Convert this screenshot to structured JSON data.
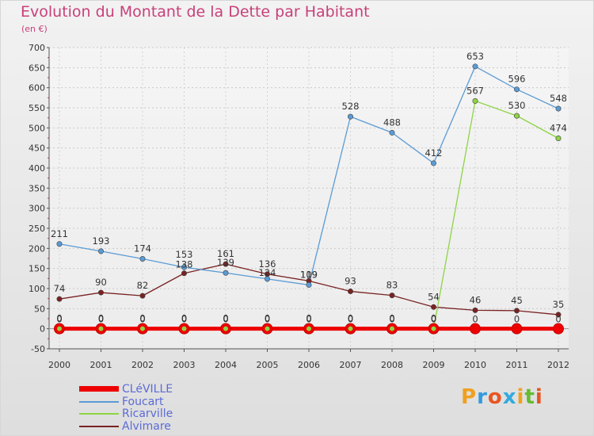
{
  "title": "Evolution du Montant de la Dette par Habitant",
  "subtitle": "(en €)",
  "brand": {
    "text": "Proxiti",
    "colors": [
      "#f0a020",
      "#3399dd",
      "#e85522",
      "#33aadd",
      "#f0a020",
      "#66bb33",
      "#e85522"
    ]
  },
  "chart_data": {
    "type": "line",
    "title": "Evolution du Montant de la Dette par Habitant",
    "subtitle": "(en €)",
    "x": [
      "2000",
      "2001",
      "2002",
      "2003",
      "2004",
      "2005",
      "2006",
      "2007",
      "2008",
      "2009",
      "2010",
      "2011",
      "2012"
    ],
    "ylim": [
      -50,
      700
    ],
    "yticks": [
      -50,
      0,
      50,
      100,
      150,
      200,
      250,
      300,
      350,
      400,
      450,
      500,
      550,
      600,
      650,
      700
    ],
    "grid": true,
    "legend_position": "bottom-left",
    "series": [
      {
        "name": "CLéVILLE",
        "color": "#ee0000",
        "values": [
          0,
          0,
          0,
          0,
          0,
          0,
          0,
          0,
          0,
          0,
          0,
          0,
          0
        ]
      },
      {
        "name": "Foucart",
        "color": "#5a9bd5",
        "values": [
          211,
          193,
          174,
          153,
          139,
          124,
          109,
          528,
          488,
          412,
          653,
          596,
          548
        ]
      },
      {
        "name": "Ricarville",
        "color": "#8ed444",
        "values": [
          0,
          0,
          0,
          0,
          0,
          0,
          0,
          0,
          0,
          0,
          567,
          530,
          474
        ]
      },
      {
        "name": "Alvimare",
        "color": "#7a2222",
        "values": [
          74,
          90,
          82,
          138,
          161,
          136,
          119,
          93,
          83,
          54,
          46,
          45,
          35
        ]
      }
    ]
  }
}
